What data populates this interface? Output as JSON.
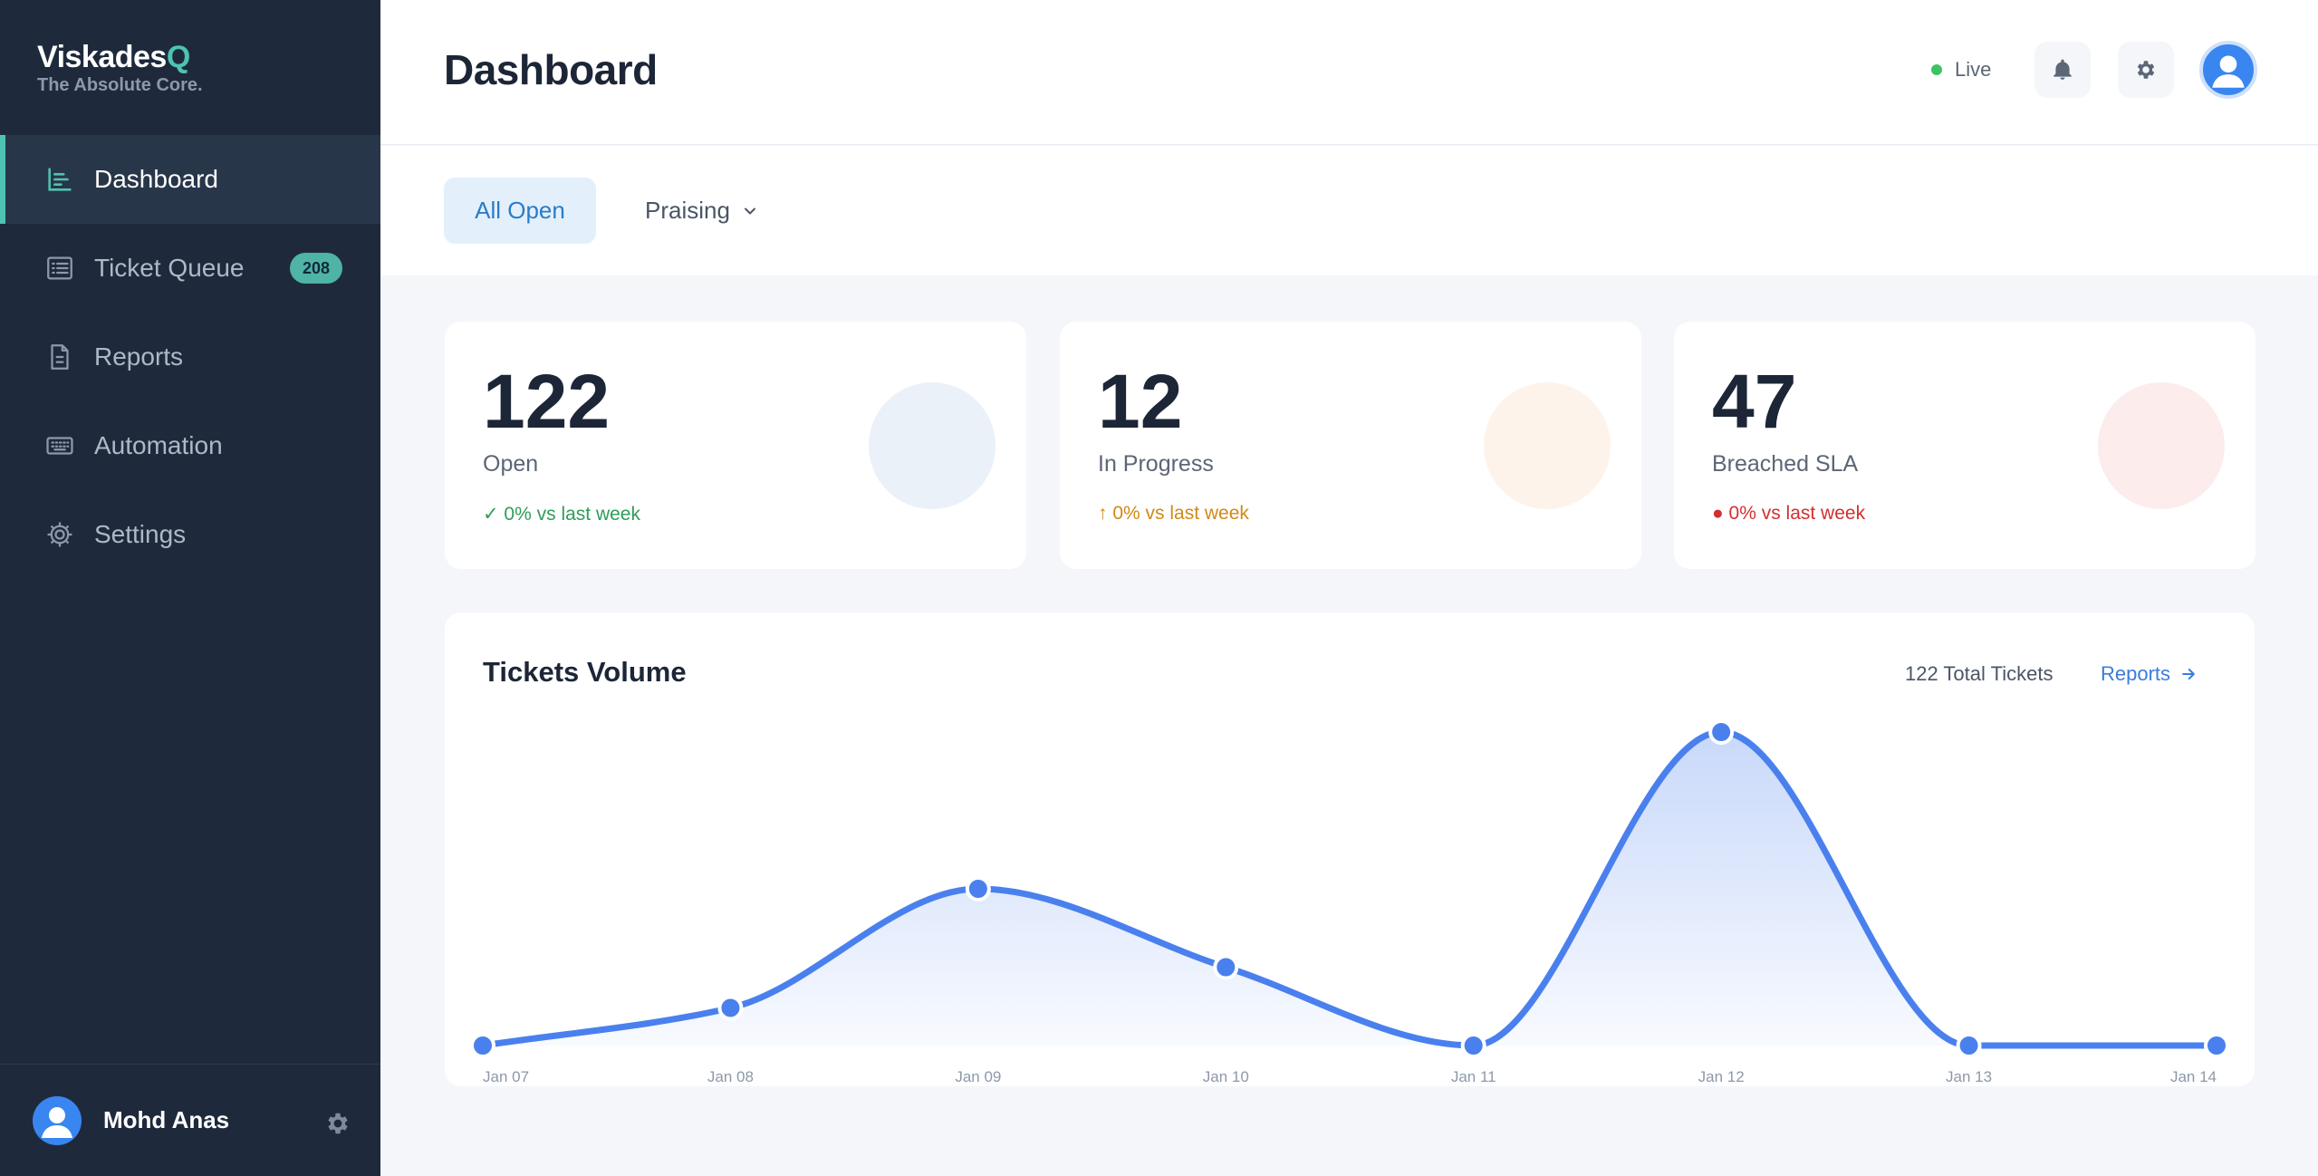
{
  "brand": {
    "name": "Viskades",
    "accent": "Q",
    "tagline": "The Absolute Core."
  },
  "sidebar": {
    "items": [
      {
        "label": "Dashboard",
        "icon": "bar-chart-icon",
        "active": true
      },
      {
        "label": "Ticket Queue",
        "icon": "list-icon",
        "badge": "208"
      },
      {
        "label": "Reports",
        "icon": "document-icon"
      },
      {
        "label": "Automation",
        "icon": "keyboard-icon"
      },
      {
        "label": "Settings",
        "icon": "gear-icon"
      }
    ],
    "user": {
      "name": "Mohd Anas"
    }
  },
  "header": {
    "title": "Dashboard",
    "status": "Live"
  },
  "filters": {
    "active": "All Open",
    "dropdown": "Praising"
  },
  "stats": [
    {
      "value": "122",
      "label": "Open",
      "delta": "✓ 0% vs last week",
      "color": "#2e9d5a",
      "circle": "#eaf1f9"
    },
    {
      "value": "12",
      "label": "In Progress",
      "delta": "↑ 0% vs last week",
      "color": "#d08a17",
      "circle": "#fdf3ea"
    },
    {
      "value": "47",
      "label": "Breached SLA",
      "delta": "● 0% vs last week",
      "color": "#d32f2f",
      "circle": "#fcecec"
    }
  ],
  "chart": {
    "title": "Tickets Volume",
    "total": "122 Total Tickets",
    "link": "Reports"
  },
  "chart_data": {
    "type": "area",
    "categories": [
      "Jan 07",
      "Jan 08",
      "Jan 09",
      "Jan 10",
      "Jan 11",
      "Jan 12",
      "Jan 13",
      "Jan 14"
    ],
    "values": [
      0,
      12,
      50,
      25,
      0,
      100,
      0,
      0
    ],
    "ylim": [
      0,
      100
    ],
    "color": "#4a80ee",
    "grid": false
  }
}
